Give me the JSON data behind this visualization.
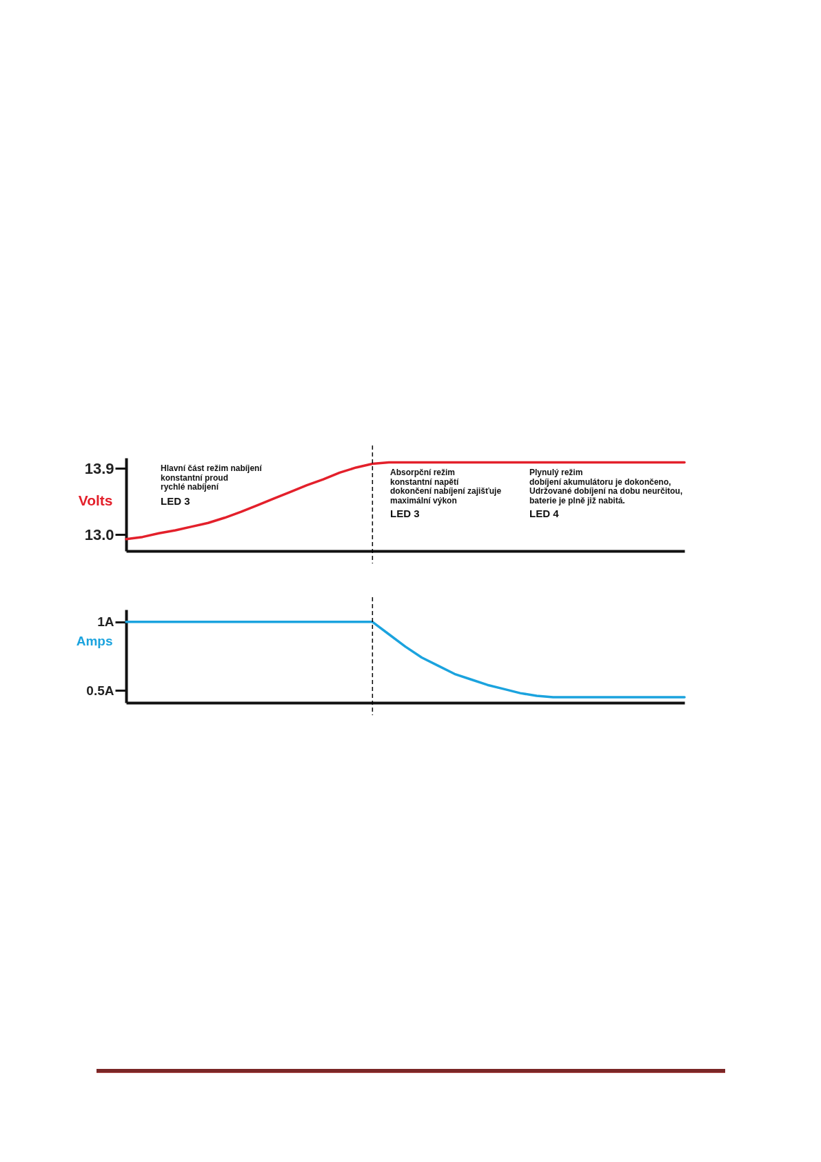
{
  "chart_data": [
    {
      "type": "line",
      "categories": [
        null,
        null,
        null,
        null,
        null,
        null,
        null,
        null,
        null,
        null,
        null,
        null,
        null,
        null,
        null,
        null,
        null,
        null,
        null,
        null,
        null,
        null,
        null,
        null,
        null,
        null,
        null,
        null,
        null,
        null,
        null,
        null,
        null,
        null,
        null
      ],
      "series": [
        {
          "color": "#e3202b",
          "values": [
            12.94,
            12.97,
            13.02,
            13.06,
            13.11,
            13.16,
            13.23,
            13.31,
            13.4,
            13.49,
            13.58,
            13.67,
            13.75,
            13.84,
            13.91,
            13.96,
            13.98,
            13.98,
            13.98,
            13.98,
            13.98,
            13.98,
            13.98,
            13.98,
            13.98,
            13.98,
            13.98,
            13.98,
            13.98,
            13.98,
            13.98,
            13.98,
            13.98,
            13.98,
            13.98
          ]
        }
      ],
      "ylabel": "Volts",
      "ylim": [
        12.78,
        14.04
      ],
      "yticks": [
        {
          "value": 13.9,
          "label": "13.9"
        },
        {
          "value": 13,
          "label": "13.0"
        }
      ],
      "tick_labels": "y",
      "grid": false,
      "annotations": [
        "Hlavní část režim nabíjení\nkonstantní proud\nrychlé nabíjení",
        "LED 3",
        "Absorpční režim\nkonstantní napětí\ndokončení nabíjení zajišťuje\nmaximální výkon",
        "LED 3",
        "Plynulý režim\ndobíjení akumulátoru je dokončeno,\nUdržované dobíjení na dobu neurčitou,\nbaterie je plně již nabitá.",
        "LED 4"
      ]
    },
    {
      "type": "line",
      "categories": [
        null,
        null,
        null,
        null,
        null,
        null,
        null,
        null,
        null,
        null,
        null,
        null,
        null,
        null,
        null,
        null,
        null,
        null,
        null,
        null,
        null,
        null,
        null,
        null,
        null,
        null,
        null,
        null,
        null,
        null,
        null,
        null,
        null,
        null,
        null
      ],
      "series": [
        {
          "color": "#1ba3de",
          "values": [
            1,
            1,
            1,
            1,
            1,
            1,
            1,
            1,
            1,
            1,
            1,
            1,
            1,
            1,
            1,
            1,
            0.91,
            0.82,
            0.74,
            0.68,
            0.62,
            0.58,
            0.54,
            0.51,
            0.48,
            0.46,
            0.45,
            0.45,
            0.45,
            0.45,
            0.45,
            0.45,
            0.45,
            0.45,
            0.45
          ]
        }
      ],
      "ylabel": "Amps",
      "ylim": [
        0.41,
        1.09
      ],
      "yticks": [
        {
          "value": 1,
          "label": "1A"
        },
        {
          "value": 0.5,
          "label": "0.5A"
        }
      ],
      "tick_labels": "y",
      "grid": false
    }
  ]
}
